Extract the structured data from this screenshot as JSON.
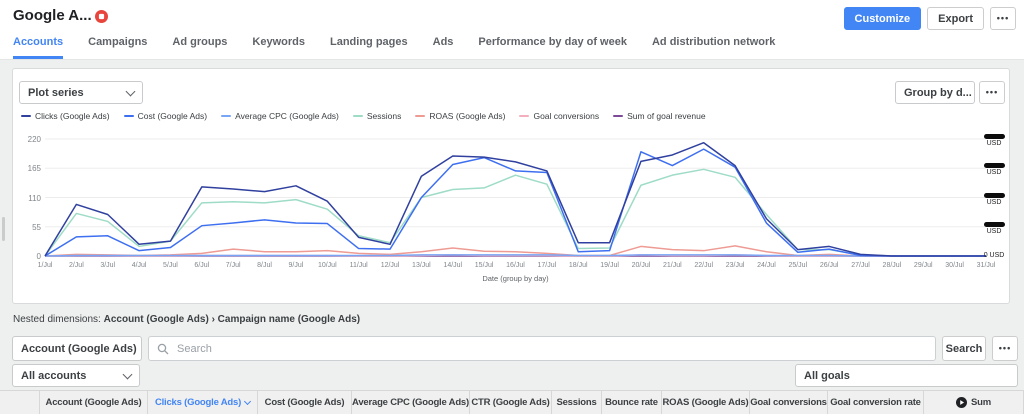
{
  "header": {
    "title": "Google A...",
    "badge_icon": "stop-badge-icon",
    "customize_label": "Customize",
    "export_label": "Export",
    "more_label": "•••"
  },
  "tabs": [
    {
      "label": "Accounts",
      "active": true
    },
    {
      "label": "Campaigns",
      "active": false
    },
    {
      "label": "Ad groups",
      "active": false
    },
    {
      "label": "Keywords",
      "active": false
    },
    {
      "label": "Landing pages",
      "active": false
    },
    {
      "label": "Ads",
      "active": false
    },
    {
      "label": "Performance by day of week",
      "active": false
    },
    {
      "label": "Ad distribution network",
      "active": false
    }
  ],
  "toolbar": {
    "plot_series_label": "Plot series",
    "group_by_label": "Group by d...",
    "more_label": "•••"
  },
  "chart_data": {
    "type": "line",
    "title": "",
    "xlabel": "Date (group by day)",
    "ylabel": "",
    "ylim": [
      0,
      220
    ],
    "yticks": [
      0,
      55,
      110,
      165,
      220
    ],
    "grid": true,
    "legend_position": "top",
    "right_axis": {
      "redacted": true,
      "tick_values": [
        220,
        165,
        110,
        55
      ],
      "tick_label": "USD",
      "zero_label": "0 USD"
    },
    "x": [
      "1/Jul",
      "2/Jul",
      "3/Jul",
      "4/Jul",
      "5/Jul",
      "6/Jul",
      "7/Jul",
      "8/Jul",
      "9/Jul",
      "10/Jul",
      "11/Jul",
      "12/Jul",
      "13/Jul",
      "14/Jul",
      "15/Jul",
      "16/Jul",
      "17/Jul",
      "18/Jul",
      "19/Jul",
      "20/Jul",
      "21/Jul",
      "22/Jul",
      "23/Jul",
      "24/Jul",
      "25/Jul",
      "26/Jul",
      "27/Jul",
      "28/Jul",
      "29/Jul",
      "30/Jul",
      "31/Jul"
    ],
    "series": [
      {
        "name": "Clicks (Google Ads)",
        "color": "#30409f",
        "values": [
          0,
          97,
          78,
          22,
          28,
          130,
          126,
          121,
          132,
          103,
          35,
          22,
          150,
          188,
          186,
          177,
          160,
          25,
          25,
          178,
          190,
          213,
          170,
          70,
          12,
          18,
          3,
          0,
          0,
          0,
          0
        ]
      },
      {
        "name": "Cost (Google Ads)",
        "color": "#3e6ff0",
        "values": [
          0,
          36,
          38,
          10,
          16,
          57,
          62,
          68,
          62,
          61,
          14,
          13,
          110,
          172,
          185,
          160,
          157,
          8,
          10,
          196,
          170,
          201,
          167,
          62,
          7,
          13,
          1,
          0,
          0,
          0,
          0
        ]
      },
      {
        "name": "Average CPC (Google Ads)",
        "color": "#78a5f5",
        "values": [
          0,
          1,
          1,
          1,
          1,
          1,
          1,
          1,
          1,
          1,
          1,
          1,
          2,
          2,
          2,
          2,
          2,
          1,
          1,
          2,
          2,
          2,
          2,
          1,
          1,
          1,
          0,
          0,
          0,
          0,
          0
        ]
      },
      {
        "name": "Sessions",
        "color": "#9edcc6",
        "values": [
          0,
          80,
          65,
          18,
          28,
          100,
          102,
          100,
          106,
          88,
          38,
          25,
          110,
          125,
          128,
          152,
          135,
          14,
          15,
          133,
          152,
          163,
          148,
          78,
          12,
          12,
          2,
          0,
          0,
          0,
          0
        ]
      },
      {
        "name": "ROAS (Google Ads)",
        "color": "#ee9b94",
        "values": [
          0,
          3,
          2,
          1,
          2,
          5,
          13,
          8,
          8,
          10,
          5,
          3,
          8,
          15,
          9,
          8,
          5,
          1,
          1,
          18,
          12,
          10,
          19,
          8,
          1,
          3,
          0,
          0,
          0,
          0,
          0
        ]
      },
      {
        "name": "Goal conversions",
        "color": "#f4afbe",
        "values": [
          0,
          1,
          1,
          0,
          0,
          1,
          1,
          1,
          1,
          1,
          0,
          0,
          1,
          2,
          1,
          1,
          1,
          0,
          0,
          2,
          1,
          1,
          2,
          1,
          0,
          0,
          0,
          0,
          0,
          0,
          0
        ]
      },
      {
        "name": "Sum of goal revenue",
        "color": "#7d4a99",
        "values": [
          0,
          0,
          0,
          0,
          0,
          0,
          0,
          0,
          0,
          0,
          0,
          0,
          0,
          0,
          0,
          0,
          0,
          0,
          0,
          0,
          0,
          0,
          0,
          0,
          0,
          0,
          0,
          0,
          0,
          0,
          0
        ]
      }
    ]
  },
  "nested_dimensions": {
    "label": "Nested dimensions:",
    "path": "Account (Google Ads) › Campaign name (Google Ads)"
  },
  "filter_bar": {
    "dimension_label": "Account (Google Ads)",
    "search_placeholder": "Search",
    "search_label": "Search",
    "more_label": "•••",
    "accounts_label": "All accounts",
    "goals_label": "All goals"
  },
  "table": {
    "columns": [
      {
        "label": ""
      },
      {
        "label": "Account (Google Ads)"
      },
      {
        "label": "Clicks (Google Ads)",
        "sorted": true
      },
      {
        "label": "Cost (Google Ads)"
      },
      {
        "label": "Average CPC (Google Ads)"
      },
      {
        "label": "CTR (Google Ads)"
      },
      {
        "label": "Sessions"
      },
      {
        "label": "Bounce rate"
      },
      {
        "label": "ROAS (Google Ads)"
      },
      {
        "label": "Goal conversions"
      },
      {
        "label": "Goal conversion rate"
      },
      {
        "label": "Sum",
        "icon": "goal-icon"
      }
    ]
  },
  "icons": {
    "stop-badge-icon": "red circle with white rounded square",
    "chevron-down-icon": "⌄",
    "search-icon": "⌕",
    "more-icon": "•••",
    "sort-desc-icon": "▾",
    "goal-icon": "dark circle with white play arrow"
  },
  "colors": {
    "accent_blue": "#4285f4",
    "page_background": "#eef0ef",
    "badge_red": "#e8453c"
  }
}
